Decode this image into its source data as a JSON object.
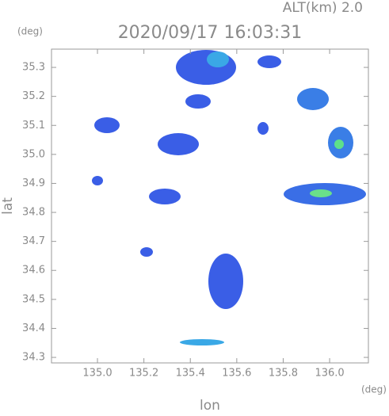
{
  "chart_data": {
    "type": "radar-map",
    "title": "2020/09/17 16:03:31",
    "subtitle": "ALT(km) 2.0",
    "y_unit": "(deg)",
    "x_unit": "(deg)",
    "x_label": "lon",
    "y_label": "lat",
    "xlim": [
      134.802,
      136.167
    ],
    "ylim": [
      34.281,
      35.363
    ],
    "xticks": [
      {
        "value": 135,
        "label": "135.0"
      },
      135.2,
      135.4,
      135.6,
      135.8,
      {
        "value": 136,
        "label": "136.0"
      }
    ],
    "yticks": [
      34.3,
      34.4,
      34.5,
      34.6,
      34.7,
      34.8,
      34.9,
      {
        "value": 35,
        "label": "35.0"
      },
      35.1,
      35.2,
      35.3
    ]
  }
}
